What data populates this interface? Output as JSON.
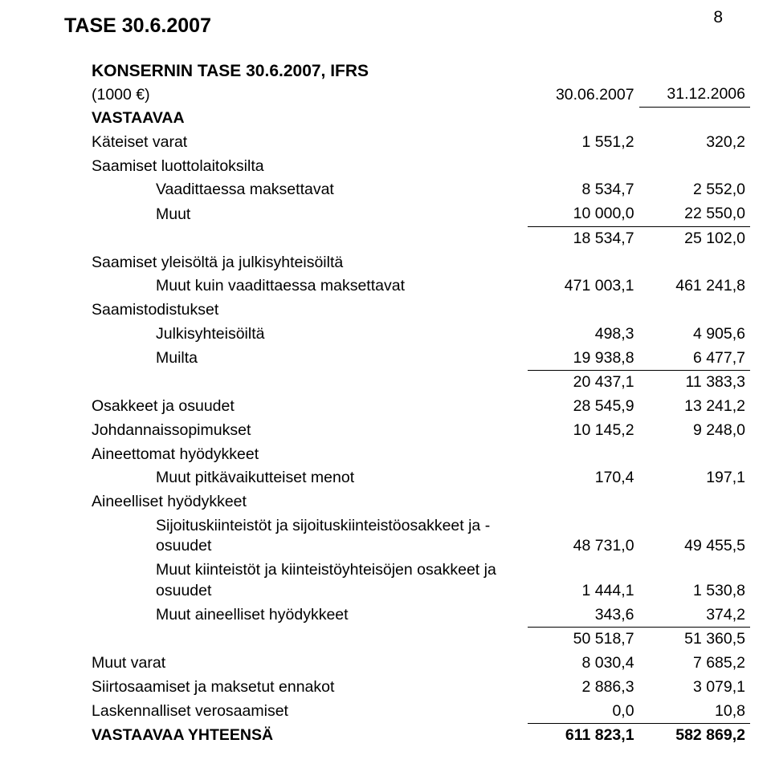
{
  "pageNumber": "8",
  "mainTitle": "TASE 30.6.2007",
  "subTitle": "KONSERNIN TASE 30.6.2007, IFRS",
  "header": {
    "unit": "(1000 €)",
    "col1": "30.06.2007",
    "col2": "31.12.2006"
  },
  "rows": [
    {
      "label": "VASTAAVAA",
      "bold": true
    },
    {
      "label": "Käteiset varat",
      "v1": "1 551,2",
      "v2": "320,2"
    },
    {
      "label": "Saamiset luottolaitoksilta"
    },
    {
      "label": "Vaadittaessa maksettavat",
      "indent": 2,
      "v1": "8 534,7",
      "v2": "2 552,0"
    },
    {
      "label": "Muut",
      "indent": 2,
      "v1": "10 000,0",
      "v2": "22 550,0",
      "u1": true,
      "u2": true
    },
    {
      "label": "",
      "v1": "18 534,7",
      "v2": "25 102,0"
    },
    {
      "label": "Saamiset yleisöltä ja julkisyhteisöiltä"
    },
    {
      "label": "Muut kuin vaadittaessa maksettavat",
      "indent": 2,
      "v1": "471 003,1",
      "v2": "461 241,8"
    },
    {
      "label": "Saamistodistukset"
    },
    {
      "label": "Julkisyhteisöiltä",
      "indent": 2,
      "v1": "498,3",
      "v2": "4 905,6"
    },
    {
      "label": "Muilta",
      "indent": 2,
      "v1": "19 938,8",
      "v2": "6 477,7",
      "u1": true,
      "u2": true
    },
    {
      "label": "",
      "v1": "20 437,1",
      "v2": "11 383,3"
    },
    {
      "label": "Osakkeet ja osuudet",
      "v1": "28 545,9",
      "v2": "13 241,2"
    },
    {
      "label": "Johdannaissopimukset",
      "v1": "10 145,2",
      "v2": "9 248,0"
    },
    {
      "label": "Aineettomat hyödykkeet"
    },
    {
      "label": "Muut pitkävaikutteiset menot",
      "indent": 2,
      "v1": "170,4",
      "v2": "197,1"
    },
    {
      "label": "Aineelliset hyödykkeet"
    },
    {
      "label": "Sijoituskiinteistöt ja sijoituskiinteistöosakkeet ja -osuudet",
      "indent": 2,
      "v1": "48 731,0",
      "v2": "49 455,5"
    },
    {
      "label": "Muut kiinteistöt ja kiinteistöyhteisöjen osakkeet ja osuudet",
      "indent": 2,
      "v1": "1 444,1",
      "v2": "1 530,8"
    },
    {
      "label": "Muut aineelliset hyödykkeet",
      "indent": 2,
      "v1": "343,6",
      "v2": "374,2",
      "u1": true,
      "u2": true
    },
    {
      "label": "",
      "v1": "50 518,7",
      "v2": "51 360,5"
    },
    {
      "label": "Muut varat",
      "v1": "8 030,4",
      "v2": "7 685,2"
    },
    {
      "label": "Siirtosaamiset ja maksetut ennakot",
      "v1": "2 886,3",
      "v2": "3 079,1"
    },
    {
      "label": "Laskennalliset verosaamiset",
      "v1": "0,0",
      "v2": "10,8",
      "u1": true,
      "u2": true
    },
    {
      "label": "VASTAAVAA YHTEENSÄ",
      "bold": true,
      "v1": "611 823,1",
      "v2": "582 869,2",
      "bold1": true,
      "bold2": true
    }
  ]
}
